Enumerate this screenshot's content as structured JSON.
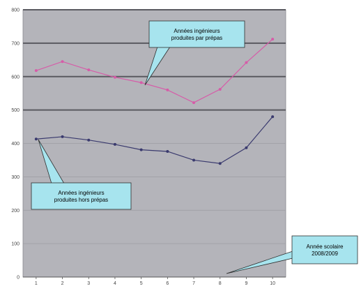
{
  "chart_data": {
    "type": "line",
    "x": [
      1,
      2,
      3,
      4,
      5,
      6,
      7,
      8,
      9,
      10
    ],
    "ylim": [
      0,
      800
    ],
    "yticks": [
      0,
      100,
      200,
      300,
      400,
      500,
      600,
      700,
      800
    ],
    "grid": true,
    "legend": "none",
    "series": [
      {
        "name": "Années ingénieurs produites par prépas",
        "color": "#d65ca8",
        "values": [
          618,
          645,
          620,
          598,
          582,
          560,
          522,
          562,
          642,
          712
        ]
      },
      {
        "name": "Années ingénieurs produites hors prépas",
        "color": "#3a3a6e",
        "values": [
          413,
          420,
          410,
          397,
          381,
          376,
          350,
          340,
          387,
          480
        ]
      }
    ],
    "annotations": [
      {
        "line1": "Années ingénieurs",
        "line2": "produites par prépas"
      },
      {
        "line1": "Années ingénieurs",
        "line2": "produites hors prépas"
      },
      {
        "line1": "Année scolaire",
        "line2": "2008/2009"
      }
    ]
  },
  "colors": {
    "plot_background": "#b4b4ba",
    "major_gridline": "#5a5a60",
    "callout_fill": "#a7e4ee",
    "callout_border": "#2e2e2e"
  }
}
